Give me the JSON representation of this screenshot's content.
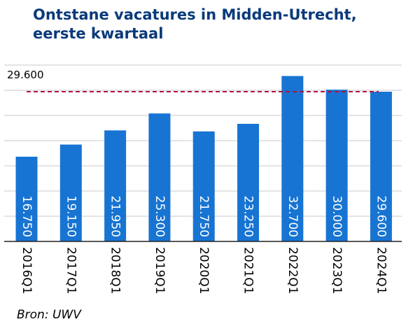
{
  "title_lines": [
    "Ontstane vacatures in Midden-Utrecht,",
    "eerste kwartaal"
  ],
  "source": "Bron: UWV",
  "chart_data": {
    "type": "bar",
    "title": "Ontstane vacatures in Midden-Utrecht, eerste kwartaal",
    "categories": [
      "2016Q1",
      "2017Q1",
      "2018Q1",
      "2019Q1",
      "2020Q1",
      "2021Q1",
      "2022Q1",
      "2023Q1",
      "2024Q1"
    ],
    "values": [
      16750,
      19150,
      21950,
      25300,
      21750,
      23250,
      32700,
      30000,
      29600
    ],
    "value_labels": [
      "16.750",
      "19.150",
      "21.950",
      "25.300",
      "21.750",
      "23.250",
      "32.700",
      "30.000",
      "29.600"
    ],
    "reference_line": {
      "value": 29600,
      "label": "29.600"
    },
    "ylim": [
      0,
      35000
    ],
    "grid": true,
    "xlabel": "",
    "ylabel": "",
    "colors": {
      "bar": "#1874d2",
      "reference": "#b0123f",
      "grid": "#c8c8c8",
      "title": "#0a3a7a"
    }
  }
}
